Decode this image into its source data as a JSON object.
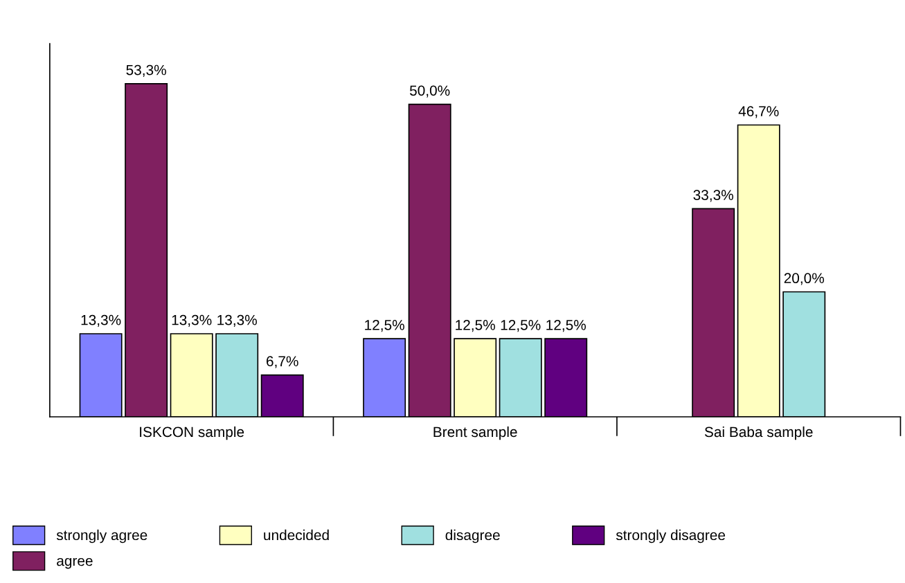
{
  "chart_data": {
    "type": "bar",
    "categories": [
      "ISKCON sample",
      "Brent sample",
      "Sai Baba sample"
    ],
    "series": [
      {
        "name": "strongly agree",
        "color": "#8080ff",
        "values": [
          13.3,
          12.5,
          null
        ],
        "value_labels": [
          "13,3%",
          "12,5%",
          null
        ]
      },
      {
        "name": "agree",
        "color": "#802060",
        "values": [
          53.3,
          50.0,
          33.3
        ],
        "value_labels": [
          "53,3%",
          "50,0%",
          "33,3%"
        ]
      },
      {
        "name": "undecided",
        "color": "#ffffc0",
        "values": [
          13.3,
          12.5,
          46.7
        ],
        "value_labels": [
          "13,3%",
          "12,5%",
          "46,7%"
        ]
      },
      {
        "name": "disagree",
        "color": "#a0e0e0",
        "values": [
          13.3,
          12.5,
          20.0
        ],
        "value_labels": [
          "13,3%",
          "12,5%",
          "20,0%"
        ]
      },
      {
        "name": "strongly disagree",
        "color": "#600080",
        "values": [
          6.7,
          12.5,
          null
        ],
        "value_labels": [
          "6,7%",
          "12,5%",
          null
        ]
      }
    ],
    "tick_labels": "x",
    "grid": false,
    "legend": "bottom"
  }
}
